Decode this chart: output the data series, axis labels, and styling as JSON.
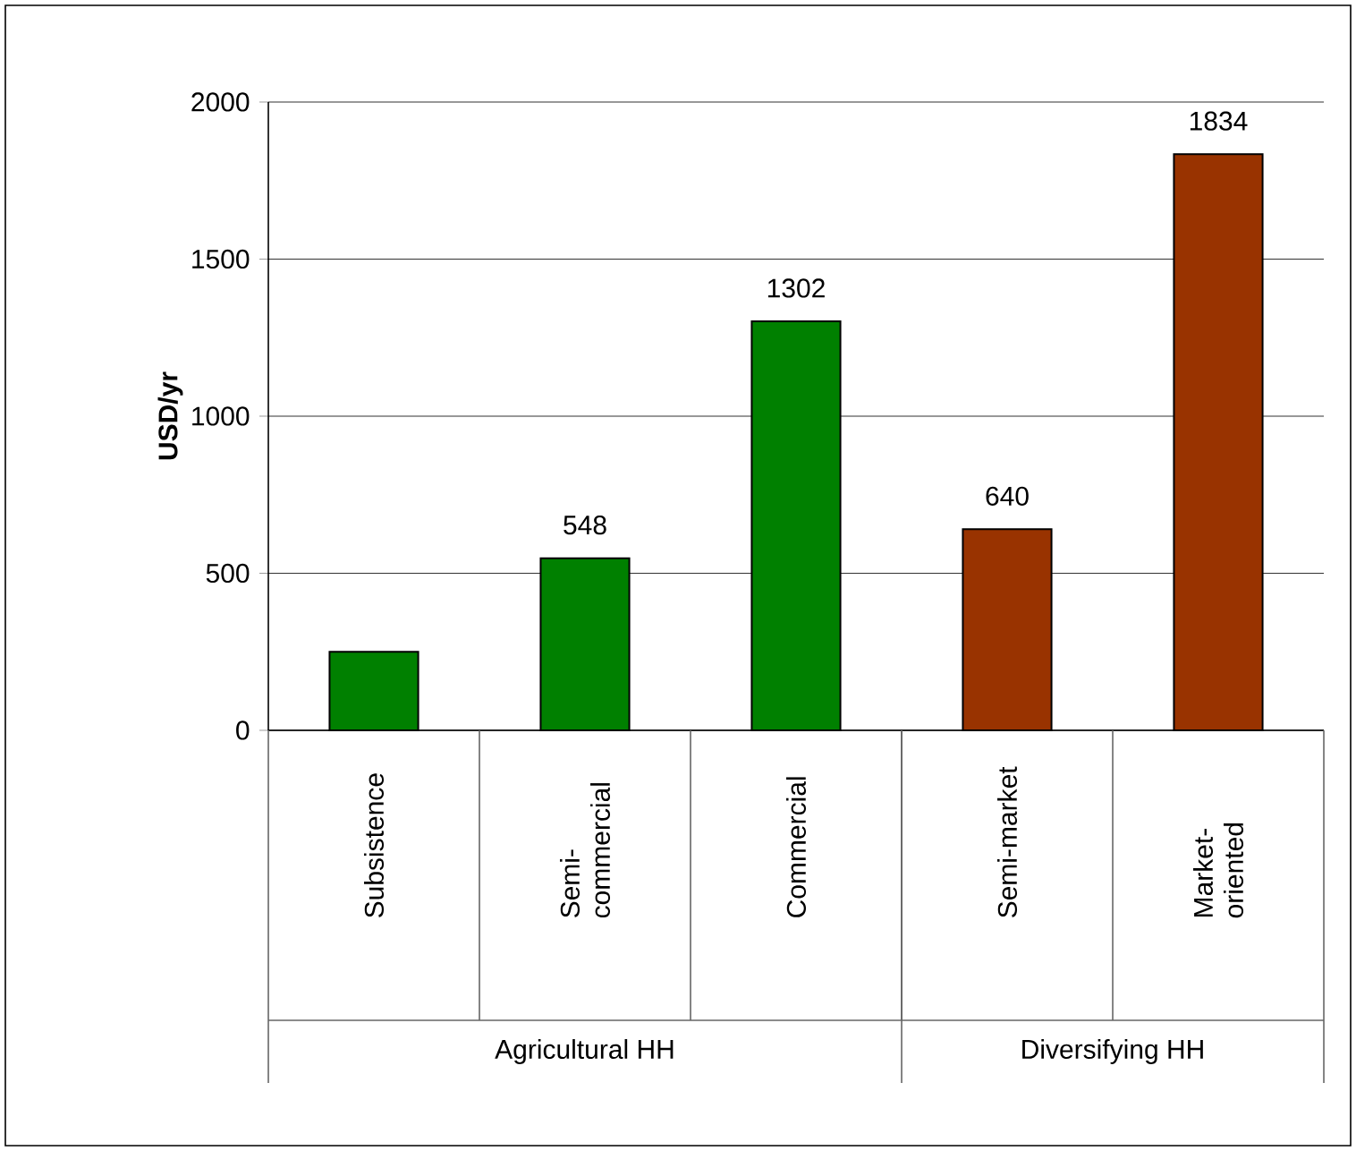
{
  "chart_data": {
    "type": "bar",
    "ylabel": "USD/yr",
    "categories": [
      "Subsistence",
      "Semi-commercial",
      "Commercial",
      "Semi-market",
      "Market-oriented"
    ],
    "values": [
      250,
      548,
      1302,
      640,
      1834
    ],
    "value_labels": [
      null,
      "548",
      "1302",
      "640",
      "1834"
    ],
    "colors": [
      "#008000",
      "#008000",
      "#008000",
      "#993300",
      "#993300"
    ],
    "ylim": [
      0,
      2000
    ],
    "yticks": [
      0,
      500,
      1000,
      1500,
      2000
    ],
    "grid": "y",
    "annotations": [
      "Agricultural HH",
      "Diversifying HH"
    ]
  }
}
